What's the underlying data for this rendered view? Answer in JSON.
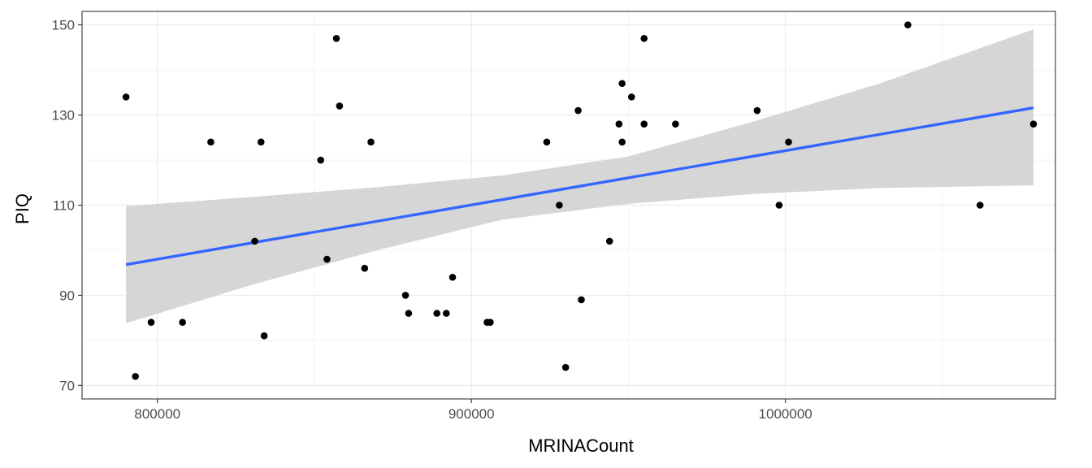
{
  "chart_data": {
    "type": "scatter",
    "xlabel": "MRINACount",
    "ylabel": "PIQ",
    "xlim": [
      776000,
      1086000
    ],
    "ylim": [
      67,
      153
    ],
    "x_ticks": [
      800000,
      900000,
      1000000
    ],
    "x_tick_labels": [
      "800000",
      "900000",
      "1000000"
    ],
    "y_ticks": [
      70,
      90,
      110,
      130,
      150
    ],
    "y_tick_labels": [
      "70",
      "90",
      "110",
      "130",
      "150"
    ],
    "grid": true,
    "points": [
      {
        "x": 790000,
        "y": 134
      },
      {
        "x": 793000,
        "y": 72
      },
      {
        "x": 798000,
        "y": 84
      },
      {
        "x": 808000,
        "y": 84
      },
      {
        "x": 817000,
        "y": 124
      },
      {
        "x": 831000,
        "y": 102
      },
      {
        "x": 833000,
        "y": 124
      },
      {
        "x": 834000,
        "y": 81
      },
      {
        "x": 852000,
        "y": 120
      },
      {
        "x": 854000,
        "y": 98
      },
      {
        "x": 857000,
        "y": 147
      },
      {
        "x": 858000,
        "y": 132
      },
      {
        "x": 866000,
        "y": 96
      },
      {
        "x": 868000,
        "y": 124
      },
      {
        "x": 879000,
        "y": 90
      },
      {
        "x": 880000,
        "y": 86
      },
      {
        "x": 889000,
        "y": 86
      },
      {
        "x": 892000,
        "y": 86
      },
      {
        "x": 894000,
        "y": 94
      },
      {
        "x": 905000,
        "y": 84
      },
      {
        "x": 906000,
        "y": 84
      },
      {
        "x": 924000,
        "y": 124
      },
      {
        "x": 928000,
        "y": 110
      },
      {
        "x": 930000,
        "y": 74
      },
      {
        "x": 934000,
        "y": 131
      },
      {
        "x": 935000,
        "y": 89
      },
      {
        "x": 944000,
        "y": 102
      },
      {
        "x": 947000,
        "y": 128
      },
      {
        "x": 948000,
        "y": 137
      },
      {
        "x": 948000,
        "y": 124
      },
      {
        "x": 951000,
        "y": 134
      },
      {
        "x": 955000,
        "y": 147
      },
      {
        "x": 955000,
        "y": 128
      },
      {
        "x": 965000,
        "y": 128
      },
      {
        "x": 991000,
        "y": 131
      },
      {
        "x": 998000,
        "y": 110
      },
      {
        "x": 1001000,
        "y": 124
      },
      {
        "x": 1039000,
        "y": 150
      },
      {
        "x": 1062000,
        "y": 110
      },
      {
        "x": 1079000,
        "y": 128
      }
    ],
    "trend_line": {
      "method": "linear",
      "x": [
        790000,
        1079000
      ],
      "y": [
        96.8,
        131.6
      ],
      "color": "#3366ff"
    },
    "confidence_band": {
      "color": "#d6d6d6",
      "x": [
        790000,
        830000,
        870000,
        910000,
        950000,
        990000,
        1030000,
        1079000
      ],
      "lower": [
        83.8,
        92.3,
        100.0,
        106.8,
        110.3,
        112.5,
        113.8,
        114.4
      ],
      "upper": [
        109.8,
        111.8,
        114.0,
        116.6,
        120.8,
        128.6,
        137.0,
        149.0
      ]
    },
    "point_color": "#000000",
    "panel_border": "#333333",
    "grid_color": "#ebebeb"
  }
}
